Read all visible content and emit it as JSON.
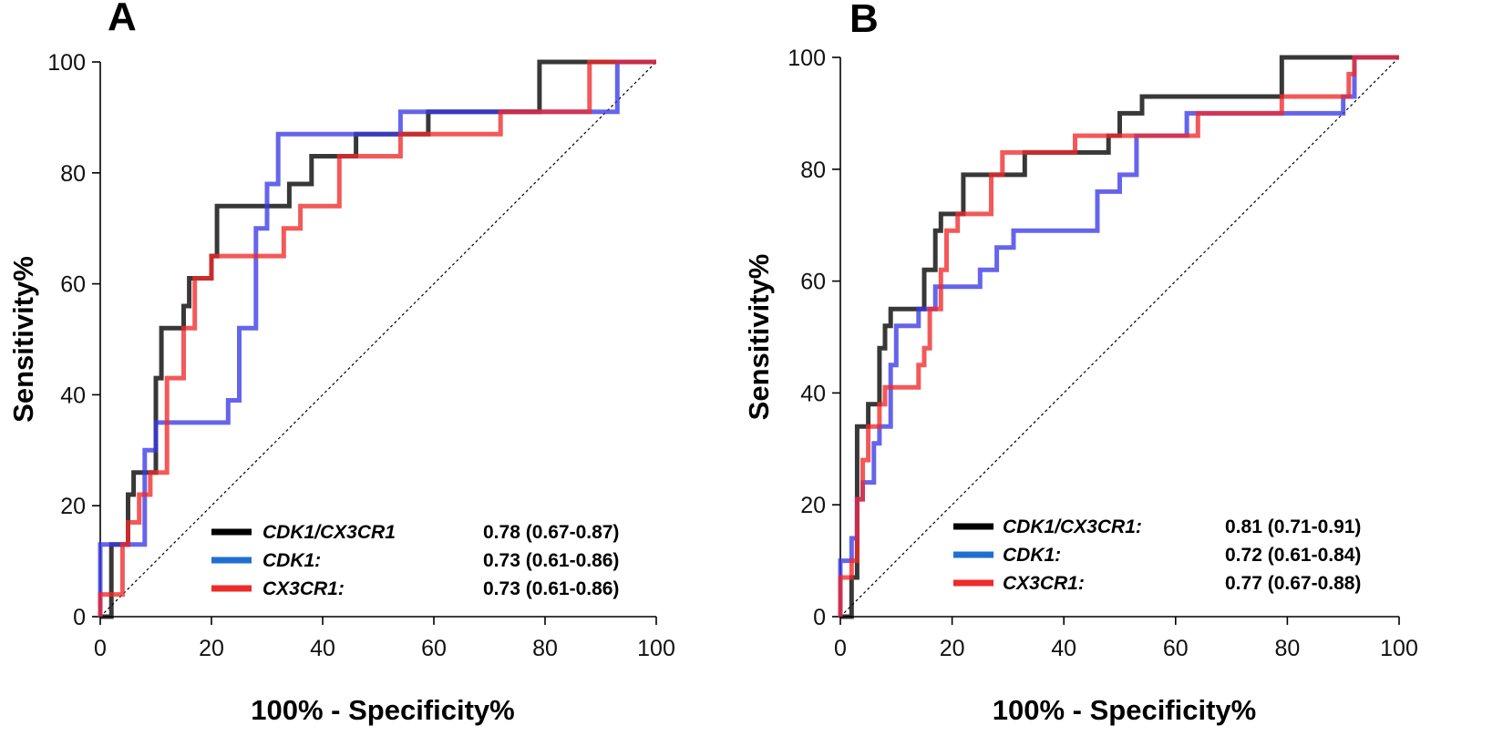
{
  "chart_data": [
    {
      "type": "line",
      "panel": "A",
      "xlabel": "100% - Specificity%",
      "ylabel": "Sensitivity%",
      "xlim": [
        0,
        100
      ],
      "ylim": [
        0,
        100
      ],
      "xticks": [
        0,
        20,
        40,
        60,
        80,
        100
      ],
      "yticks": [
        0,
        20,
        40,
        60,
        80,
        100
      ],
      "reference_line": "diagonal",
      "legend_position": "bottom-right",
      "series": [
        {
          "name": "CDK1/CX3CR1",
          "auc": "0.78 (0.67-0.87)",
          "color": "#000000",
          "x": [
            0,
            2,
            2,
            3,
            3,
            5,
            5,
            6,
            6,
            8,
            8,
            10,
            10,
            11,
            11,
            15,
            15,
            16,
            16,
            20,
            20,
            21,
            21,
            31,
            31,
            34,
            34,
            38,
            38,
            41,
            41,
            46,
            46,
            59,
            59,
            79,
            79,
            100
          ],
          "y": [
            0,
            0,
            13,
            13,
            13,
            13,
            22,
            22,
            26,
            26,
            26,
            26,
            43,
            43,
            52,
            52,
            56,
            56,
            61,
            61,
            65,
            65,
            74,
            74,
            74,
            74,
            78,
            78,
            83,
            83,
            83,
            83,
            87,
            87,
            91,
            91,
            100,
            100
          ]
        },
        {
          "name": "CDK1:",
          "auc": "0.73 (0.61-0.86)",
          "color": "#3a3ae6",
          "x": [
            0,
            0,
            3,
            3,
            8,
            8,
            10,
            10,
            23,
            23,
            25,
            25,
            28,
            28,
            30,
            30,
            32,
            32,
            54,
            54,
            88,
            88,
            93,
            93,
            100
          ],
          "y": [
            0,
            13,
            13,
            13,
            13,
            30,
            30,
            35,
            35,
            39,
            39,
            52,
            52,
            70,
            70,
            78,
            78,
            87,
            87,
            91,
            91,
            91,
            91,
            100,
            100
          ]
        },
        {
          "name": "CX3CR1:",
          "auc": "0.73 (0.61-0.86)",
          "color": "#ef2a2a",
          "x": [
            0,
            0,
            4,
            4,
            5,
            5,
            7,
            7,
            9,
            9,
            12,
            12,
            15,
            15,
            17,
            17,
            20,
            20,
            33,
            33,
            36,
            36,
            43,
            43,
            46,
            46,
            54,
            54,
            72,
            72,
            88,
            88,
            100
          ],
          "y": [
            0,
            4,
            4,
            13,
            13,
            17,
            17,
            22,
            22,
            26,
            26,
            43,
            43,
            52,
            52,
            61,
            61,
            65,
            65,
            70,
            70,
            74,
            74,
            83,
            83,
            83,
            83,
            87,
            87,
            91,
            91,
            100,
            100
          ]
        }
      ]
    },
    {
      "type": "line",
      "panel": "B",
      "xlabel": "100% - Specificity%",
      "ylabel": "Sensitivity%",
      "xlim": [
        0,
        100
      ],
      "ylim": [
        0,
        100
      ],
      "xticks": [
        0,
        20,
        40,
        60,
        80,
        100
      ],
      "yticks": [
        0,
        20,
        40,
        60,
        80,
        100
      ],
      "reference_line": "diagonal",
      "legend_position": "bottom-right",
      "series": [
        {
          "name": "CDK1/CX3CR1:",
          "auc": "0.81 (0.71-0.91)",
          "color": "#000000",
          "x": [
            0,
            2,
            2,
            3,
            3,
            5,
            5,
            7,
            7,
            8,
            8,
            9,
            9,
            12,
            12,
            15,
            15,
            17,
            17,
            18,
            18,
            20,
            20,
            22,
            22,
            30,
            30,
            33,
            33,
            48,
            48,
            50,
            50,
            54,
            54,
            79,
            79,
            100
          ],
          "y": [
            0,
            0,
            7,
            7,
            34,
            34,
            38,
            38,
            48,
            48,
            52,
            52,
            55,
            55,
            55,
            55,
            62,
            62,
            69,
            69,
            72,
            72,
            72,
            72,
            79,
            79,
            79,
            79,
            83,
            83,
            86,
            86,
            90,
            90,
            93,
            93,
            100,
            100
          ]
        },
        {
          "name": "CDK1:",
          "auc": "0.72 (0.61-0.84)",
          "color": "#3a3ae6",
          "x": [
            0,
            0,
            2,
            2,
            3,
            3,
            4,
            4,
            6,
            6,
            7,
            7,
            9,
            9,
            10,
            10,
            14,
            14,
            17,
            17,
            25,
            25,
            28,
            28,
            31,
            31,
            36,
            36,
            46,
            46,
            50,
            50,
            53,
            53,
            54,
            54,
            62,
            62,
            90,
            90,
            92,
            92,
            100
          ],
          "y": [
            0,
            10,
            10,
            14,
            14,
            21,
            21,
            24,
            24,
            31,
            31,
            34,
            34,
            45,
            45,
            52,
            52,
            55,
            55,
            59,
            59,
            62,
            62,
            66,
            66,
            69,
            69,
            69,
            69,
            76,
            76,
            79,
            79,
            86,
            86,
            86,
            86,
            90,
            90,
            93,
            93,
            100,
            100
          ]
        },
        {
          "name": "CX3CR1:",
          "auc": "0.77 (0.67-0.88)",
          "color": "#ef2a2a",
          "x": [
            0,
            0,
            2,
            2,
            3,
            3,
            4,
            4,
            5,
            5,
            7,
            7,
            8,
            8,
            14,
            14,
            15,
            15,
            16,
            16,
            18,
            18,
            19,
            19,
            21,
            21,
            27,
            27,
            29,
            29,
            42,
            42,
            51,
            51,
            64,
            64,
            79,
            79,
            91,
            91,
            92,
            92,
            100
          ],
          "y": [
            0,
            7,
            7,
            10,
            10,
            21,
            21,
            28,
            28,
            34,
            34,
            38,
            38,
            41,
            41,
            45,
            45,
            48,
            48,
            55,
            55,
            62,
            62,
            69,
            69,
            72,
            72,
            79,
            79,
            83,
            83,
            86,
            86,
            86,
            86,
            90,
            90,
            93,
            93,
            97,
            97,
            100,
            100
          ]
        }
      ]
    }
  ]
}
